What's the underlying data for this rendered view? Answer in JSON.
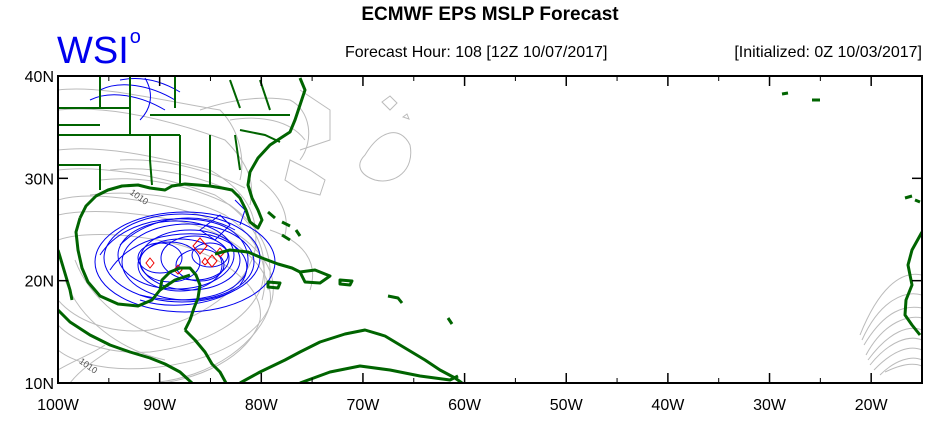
{
  "header": {
    "title": "ECMWF EPS MSLP Forecast",
    "logo": "WSI",
    "logo_mark": "o",
    "forecast_hour": "Forecast Hour: 108 [12Z 10/07/2017]",
    "initialized": "[Initialized: 0Z 10/03/2017]"
  },
  "map": {
    "lon_range": [
      -100,
      -15
    ],
    "lat_range": [
      10,
      40
    ],
    "lat_ticks": [
      {
        "lat": 40,
        "label": "40N"
      },
      {
        "lat": 30,
        "label": "30N"
      },
      {
        "lat": 20,
        "label": "20N"
      },
      {
        "lat": 10,
        "label": "10N"
      }
    ],
    "lon_ticks": [
      {
        "lon": -100,
        "label": "100W"
      },
      {
        "lon": -90,
        "label": "90W"
      },
      {
        "lon": -80,
        "label": "80W"
      },
      {
        "lon": -70,
        "label": "70W"
      },
      {
        "lon": -60,
        "label": "60W"
      },
      {
        "lon": -50,
        "label": "50W"
      },
      {
        "lon": -40,
        "label": "40W"
      },
      {
        "lon": -30,
        "label": "30W"
      },
      {
        "lon": -20,
        "label": "20W"
      }
    ],
    "contour_labels": [
      {
        "text": "1010",
        "lon": -93,
        "lat": 28.5
      },
      {
        "text": "1010",
        "lon": -98,
        "lat": 12
      }
    ],
    "colors": {
      "coast": "#006400",
      "ensemble_contour": "#bbbbbb",
      "low_contour": "#0000ee",
      "center_contour": "#ee0000",
      "frame": "#000000"
    }
  }
}
